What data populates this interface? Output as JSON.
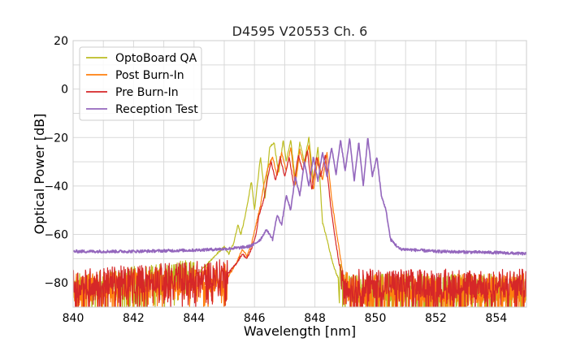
{
  "chart_data": {
    "type": "line",
    "title": "D4595 V20553 Ch. 6",
    "xlabel": "Wavelength [nm]",
    "ylabel": "Optical Power [dB]",
    "xlim": [
      840,
      855
    ],
    "ylim": [
      -90,
      20
    ],
    "xticks": [
      840,
      842,
      844,
      846,
      848,
      850,
      852,
      854
    ],
    "yticks": [
      20,
      0,
      -20,
      -40,
      -60,
      -80
    ],
    "xtick_labels": [
      "840",
      "842",
      "844",
      "846",
      "848",
      "850",
      "852",
      "854"
    ],
    "ytick_labels": [
      "20",
      "0",
      "−20",
      "−40",
      "−60",
      "−80"
    ],
    "grid": true,
    "legend_position": "top-left",
    "series": [
      {
        "name": "OptoBoard QA",
        "color": "#bcbd22",
        "noise_floor": -84,
        "x": [
          840.0,
          844.0,
          844.6,
          845.0,
          845.15,
          845.3,
          845.45,
          845.55,
          845.7,
          845.9,
          846.0,
          846.2,
          846.35,
          846.5,
          846.65,
          846.8,
          846.95,
          847.05,
          847.2,
          847.35,
          847.5,
          847.65,
          847.8,
          847.95,
          848.1,
          848.25,
          848.4,
          848.55,
          848.7,
          848.85,
          848.95,
          849.05
        ],
        "y": [
          -84,
          -78,
          -70,
          -65,
          -68,
          -64,
          -56,
          -60,
          -52,
          -38,
          -50,
          -28,
          -45,
          -24,
          -22,
          -35,
          -21,
          -30,
          -21,
          -38,
          -22,
          -30,
          -20,
          -38,
          -24,
          -55,
          -62,
          -70,
          -76,
          -80,
          -83,
          -84
        ]
      },
      {
        "name": "Post Burn-In",
        "color": "#ff7f0e",
        "noise_floor": -84,
        "x": [
          840.0,
          845.0,
          845.4,
          845.6,
          845.75,
          845.9,
          846.05,
          846.2,
          846.3,
          846.45,
          846.6,
          846.75,
          846.9,
          847.05,
          847.2,
          847.35,
          847.5,
          847.65,
          847.8,
          847.95,
          848.1,
          848.25,
          848.4,
          848.55,
          848.7,
          848.85,
          848.95,
          849.05,
          849.2
        ],
        "y": [
          -84,
          -80,
          -72,
          -66,
          -69,
          -64,
          -56,
          -48,
          -40,
          -32,
          -28,
          -36,
          -26,
          -34,
          -24,
          -40,
          -25,
          -32,
          -23,
          -42,
          -28,
          -38,
          -26,
          -45,
          -58,
          -70,
          -78,
          -83,
          -84
        ]
      },
      {
        "name": "Pre Burn-In",
        "color": "#d62728",
        "noise_floor": -82,
        "x": [
          840.0,
          845.0,
          845.4,
          845.6,
          845.75,
          845.9,
          846.05,
          846.15,
          846.3,
          846.45,
          846.55,
          846.7,
          846.85,
          847.0,
          847.15,
          847.3,
          847.45,
          847.6,
          847.75,
          847.9,
          848.05,
          848.2,
          848.35,
          848.5,
          848.65,
          848.8,
          848.95,
          849.1,
          849.25
        ],
        "y": [
          -82,
          -78,
          -72,
          -68,
          -70,
          -66,
          -60,
          -52,
          -46,
          -36,
          -30,
          -38,
          -28,
          -36,
          -28,
          -40,
          -27,
          -34,
          -25,
          -42,
          -28,
          -36,
          -27,
          -46,
          -60,
          -72,
          -80,
          -82,
          -82
        ]
      },
      {
        "name": "Reception Test",
        "color": "#9467bd",
        "noise_floor": -67,
        "x": [
          840.0,
          842.0,
          844.0,
          845.0,
          845.5,
          845.8,
          846.0,
          846.2,
          846.4,
          846.6,
          846.75,
          846.9,
          847.05,
          847.2,
          847.35,
          847.5,
          847.65,
          847.8,
          847.95,
          848.1,
          848.25,
          848.4,
          848.55,
          848.7,
          848.85,
          849.0,
          849.15,
          849.3,
          849.45,
          849.6,
          849.75,
          849.9,
          850.05,
          850.2,
          850.35,
          850.5,
          850.8,
          852.0,
          854.0,
          855.0
        ],
        "y": [
          -67,
          -67,
          -66.5,
          -66,
          -65.5,
          -65,
          -64,
          -62,
          -58,
          -62,
          -52,
          -56,
          -44,
          -50,
          -36,
          -44,
          -30,
          -40,
          -28,
          -38,
          -26,
          -36,
          -24,
          -35,
          -21,
          -34,
          -20,
          -38,
          -22,
          -40,
          -20,
          -36,
          -28,
          -44,
          -50,
          -62,
          -66,
          -67,
          -67.5,
          -68
        ]
      }
    ]
  }
}
